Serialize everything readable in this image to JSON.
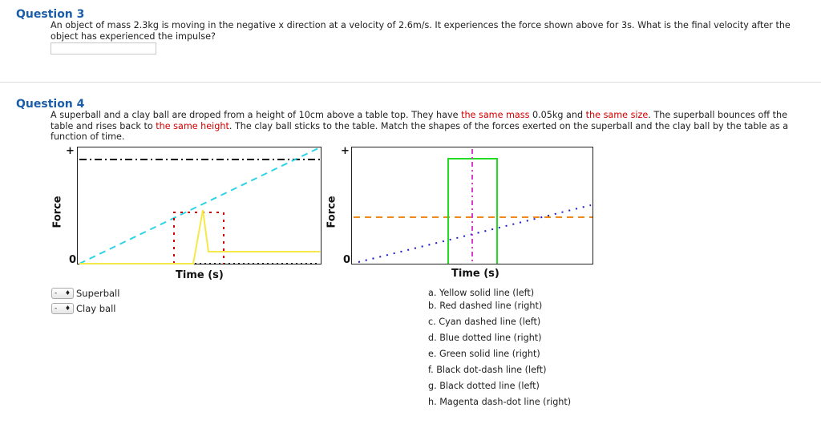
{
  "q3": {
    "title": "Question 3",
    "text": "An object of mass 2.3kg is moving in the negative x direction at a velocity of 2.6m/s. It experiences the force shown above for 3s. What is the final velocity after the object has experienced the impulse?",
    "answer_value": ""
  },
  "q4": {
    "title": "Question 4",
    "text_1": "A superball and a clay ball are droped from a height of 10cm above a table top. They have ",
    "red_1": "the same mass",
    "text_2": " 0.05kg and ",
    "red_2": "the same size",
    "text_3": ". The superball bounces off the table and rises back to ",
    "red_3": "the same height",
    "text_4": ". The clay ball sticks to the table. Match the shapes of the forces exerted on the superball and the clay ball by the table as a function of time.",
    "left_plot": {
      "ylabel": "Force",
      "xlabel": "Time (s)",
      "y_plus": "+",
      "y_zero": "0"
    },
    "right_plot": {
      "ylabel": "Force",
      "xlabel": "Time (s)",
      "y_plus": "+",
      "y_zero": "0"
    },
    "selects": [
      {
        "label": "Superball",
        "value": "-"
      },
      {
        "label": "Clay ball",
        "value": "-"
      }
    ],
    "options": [
      "a. Yellow solid line (left)",
      "b. Red dashed line (right)",
      "c. Cyan dashed line (left)",
      "d. Blue dotted line (right)",
      "e. Green solid line (right)",
      "f. Black dot-dash line (left)",
      "g. Black dotted line (left)",
      "h. Magenta dash-dot line (right)"
    ]
  },
  "colors": {
    "question_title": "#1a5ea8",
    "highlight": "#d20000",
    "yellow": "#f5e94a",
    "red": "#d00000",
    "cyan": "#2dd4e8",
    "blue": "#1a1ac8",
    "green": "#22dd22",
    "black": "#000000",
    "orange": "#f08a1a",
    "magenta": "#d23ad2"
  }
}
